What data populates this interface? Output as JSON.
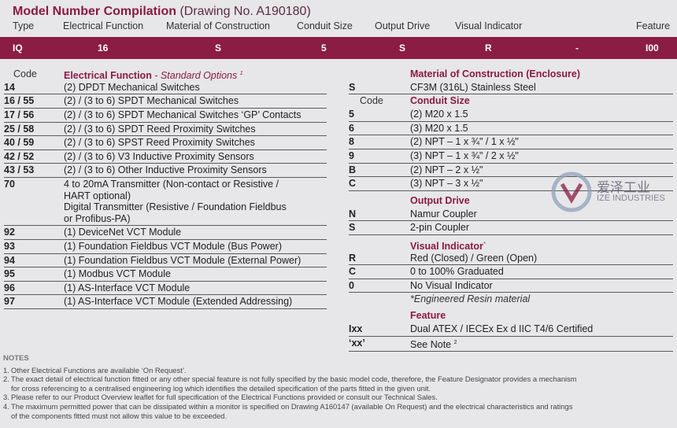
{
  "header": {
    "title": "Model Number Compilation",
    "subtitle": "(Drawing No. A190180)"
  },
  "columns": [
    "Type",
    "Electrical Function",
    "Material of Construction",
    "Conduit Size",
    "Output Drive",
    "Visual Indicator",
    "Feature"
  ],
  "code_bar": [
    "IQ",
    "16",
    "S",
    "5",
    "S",
    "R",
    "-",
    "I00"
  ],
  "left_table": {
    "code_label": "Code",
    "title": "Electrical Function",
    "subtitle": "- Standard Options",
    "sup": "1",
    "rows": [
      {
        "code": "14",
        "lines": [
          "(2) DPDT Mechanical Switches"
        ]
      },
      {
        "code": "16 / 55",
        "lines": [
          "(2) / (3 to 6) SPDT Mechanical Switches"
        ]
      },
      {
        "code": "17 / 56",
        "lines": [
          "(2) / (3 to 6) SPDT Mechanical Switches ‘GP’ Contacts"
        ]
      },
      {
        "code": "25 / 58",
        "lines": [
          "(2) / (3 to 6) SPDT Reed Proximity Switches"
        ]
      },
      {
        "code": "40 / 59",
        "lines": [
          "(2) / (3 to 6) SPST Reed Proximity Switches"
        ]
      },
      {
        "code": "42 / 52",
        "lines": [
          "(2) / (3 to 6) V3 Inductive Proximity Sensors"
        ]
      },
      {
        "code": "43 / 53",
        "lines": [
          "(2) / (3 to 6) Other Inductive Proximity Sensors"
        ]
      },
      {
        "code": "70",
        "lines": [
          "4 to 20mA Transmitter (Non-contact or Resistive /",
          "HART optional)",
          "Digital Transmitter (Resistive / Foundation Fieldbus",
          "or Profibus-PA)"
        ]
      },
      {
        "code": "92",
        "lines": [
          "(1) DeviceNet VCT Module"
        ]
      },
      {
        "code": "93",
        "lines": [
          "(1) Foundation Fieldbus VCT Module (Bus Power)"
        ]
      },
      {
        "code": "94",
        "lines": [
          "(1) Foundation Fieldbus VCT Module (External Power)"
        ]
      },
      {
        "code": "95",
        "lines": [
          "(1) Modbus VCT Module"
        ]
      },
      {
        "code": "96",
        "lines": [
          "(1) AS-Interface VCT Module"
        ]
      },
      {
        "code": "97",
        "lines": [
          "(1) AS-Interface VCT Module (Extended Addressing)"
        ]
      }
    ]
  },
  "right_table": [
    {
      "title": "Material of Construction (Enclosure)",
      "rows": [
        {
          "code": "S",
          "text": "CF3M (316L) Stainless Steel"
        }
      ]
    },
    {
      "code_label": "Code",
      "title": "Conduit Size",
      "rows": [
        {
          "code": "5",
          "text": "(2) M20 x 1.5"
        },
        {
          "code": "6",
          "text": "(3) M20 x 1.5"
        },
        {
          "code": "8",
          "text": "(2) NPT – 1 x ¾\" / 1 x ½\""
        },
        {
          "code": "9",
          "text": "(3) NPT – 1 x ¾\" / 2 x ½\""
        },
        {
          "code": "B",
          "text": "(2) NPT – 2 x ½\""
        },
        {
          "code": "C",
          "text": "(3) NPT – 3 x ½\""
        }
      ]
    },
    {
      "title": "Output Drive",
      "rows": [
        {
          "code": "N",
          "text": "Namur Coupler"
        },
        {
          "code": "S",
          "text": "2-pin Coupler"
        }
      ]
    },
    {
      "title": "Visual Indicator",
      "mark": "*",
      "rows": [
        {
          "code": "R",
          "text": "Red (Closed) / Green (Open)"
        },
        {
          "code": "C",
          "text": "0 to 100% Graduated"
        },
        {
          "code": "0",
          "text": "No Visual Indicator"
        }
      ],
      "note": "*Engineered Resin material"
    },
    {
      "title": "Feature",
      "rows": [
        {
          "code": "Ixx",
          "text": "Dual ATEX / IECEx Ex d IIC T4/6 Certified"
        },
        {
          "code": "‘xx’",
          "text": "See Note",
          "sup": "2"
        }
      ]
    }
  ],
  "watermark": {
    "name": "爱泽工业",
    "sub": "IZE INDUSTRIES"
  },
  "notes": {
    "title": "NOTES",
    "items": [
      {
        "num": "1.",
        "lines": [
          "Other Electrical Functions are available ‘On Request’."
        ]
      },
      {
        "num": "2.",
        "lines": [
          "The exact detail of electrical function fitted or any other special feature is not fully specified by the basic model code, therefore, the Feature Designator provides a mechanism",
          "for cross referencing to a centralised engineering log which identifies the detailed specification of the parts fitted in the given unit."
        ]
      },
      {
        "num": "3.",
        "lines": [
          "Please refer to our Product Overview leaflet for full specification of the Electrical Functions provided or consult our Technical Sales."
        ]
      },
      {
        "num": "4.",
        "lines": [
          "The maximum permitted power that can be dissipated within a monitor is specified on Drawing A160147 (available On Request) and the electrical characteristics and ratings",
          "of the components fitted must not allow this value to be exceeded."
        ]
      }
    ]
  }
}
